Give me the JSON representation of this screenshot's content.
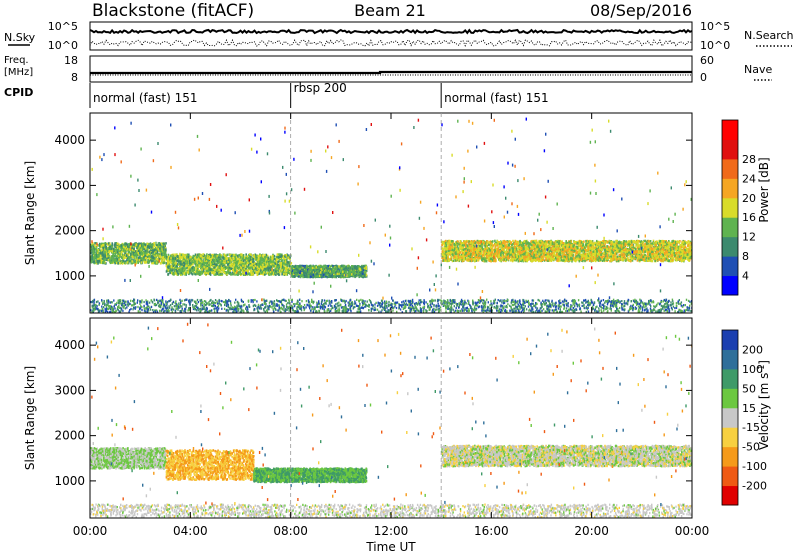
{
  "header": {
    "station": "Blackstone (fitACF)",
    "beam": "Beam 21",
    "date": "08/Sep/2016"
  },
  "side_labels": {
    "nsky": "N.Sky",
    "nsearch": "N.Search",
    "freq": "Freq.",
    "freq_unit": "[MHz]",
    "nave": "Nave",
    "cpid": "CPID"
  },
  "noise_ticks": {
    "left_top": "10^5",
    "left_bottom": "10^0",
    "right_top": "10^5",
    "right_bottom": "10^0"
  },
  "freq_ticks": {
    "left_top": "18",
    "left_bottom": "8",
    "right_top": "60",
    "right_bottom": "0"
  },
  "cpid_segments": [
    {
      "label": "normal (fast) 151",
      "start_hour": 0,
      "end_hour": 8
    },
    {
      "label": "rbsp 200",
      "start_hour": 8,
      "end_hour": 14
    },
    {
      "label": "normal (fast) 151",
      "start_hour": 14,
      "end_hour": 24
    }
  ],
  "chart_data": [
    {
      "type": "heatmap",
      "name": "power",
      "ylabel": "Slant Range [km]",
      "x_range_hours": [
        0,
        24
      ],
      "ylim": [
        180,
        4600
      ],
      "yticks": [
        1000,
        2000,
        3000,
        4000
      ],
      "colorbar": {
        "label": "Power [dB]",
        "range": [
          0,
          32
        ],
        "ticks": [
          "4",
          "8",
          "12",
          "16",
          "20",
          "24",
          "28"
        ],
        "colors": [
          "#0000ff",
          "#1f4fb4",
          "#3c8a6e",
          "#5fb350",
          "#d8dc2a",
          "#f5a623",
          "#f06a1a",
          "#e01010",
          "#ff0000"
        ]
      },
      "bands": [
        {
          "t0": 0.0,
          "t1": 3.0,
          "r0": 1300,
          "r1": 1750,
          "level": 14
        },
        {
          "t0": 3.0,
          "t1": 8.0,
          "r0": 1050,
          "r1": 1500,
          "level": 15
        },
        {
          "t0": 8.0,
          "t1": 11.0,
          "r0": 1000,
          "r1": 1250,
          "level": 12
        },
        {
          "t0": 14.0,
          "t1": 24.0,
          "r0": 1350,
          "r1": 1800,
          "level": 18
        }
      ]
    },
    {
      "type": "heatmap",
      "name": "velocity",
      "xlabel": "Time UT",
      "ylabel": "Slant Range [km]",
      "x_range_hours": [
        0,
        24
      ],
      "ylim": [
        180,
        4600
      ],
      "yticks": [
        1000,
        2000,
        3000,
        4000
      ],
      "xticks": [
        "00:00",
        "04:00",
        "08:00",
        "12:00",
        "16:00",
        "20:00",
        "00:00"
      ],
      "colorbar": {
        "label": "Velocity [m s^-1]",
        "ticks": [
          "200",
          "100",
          "50",
          "15",
          "-15",
          "-50",
          "-100",
          "-200"
        ],
        "colors": [
          "#1b3fb0",
          "#2f6f9a",
          "#3f9a68",
          "#6cc840",
          "#c8c8c8",
          "#f7d040",
          "#f59a1a",
          "#ef5a14",
          "#e00000"
        ]
      },
      "bands": [
        {
          "t0": 0.0,
          "t1": 3.0,
          "r0": 1300,
          "r1": 1750,
          "level": 15
        },
        {
          "t0": 3.0,
          "t1": 6.5,
          "r0": 1050,
          "r1": 1700,
          "level": -50
        },
        {
          "t0": 6.5,
          "t1": 11.0,
          "r0": 1000,
          "r1": 1300,
          "level": 50
        },
        {
          "t0": 14.0,
          "t1": 24.0,
          "r0": 1350,
          "r1": 1800,
          "level": 0
        }
      ]
    }
  ]
}
